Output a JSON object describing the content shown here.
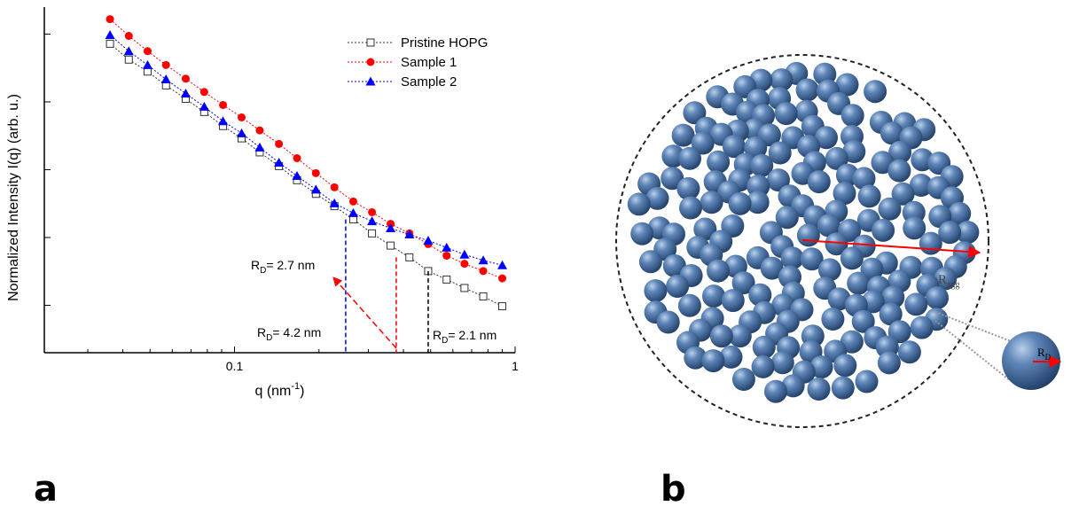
{
  "chart_data": {
    "type": "line",
    "log_x": true,
    "log_y": true,
    "x_label": {
      "text": "q (nm",
      "sup": "-1",
      "end": ")"
    },
    "y_label": "Normalized Intensity I(q) (arb. u.)",
    "x": [
      0.036,
      0.042,
      0.049,
      0.057,
      0.067,
      0.078,
      0.091,
      0.106,
      0.123,
      0.144,
      0.167,
      0.195,
      0.227,
      0.265,
      0.309,
      0.36,
      0.42,
      0.49,
      0.57,
      0.66,
      0.77,
      0.9
    ],
    "xlim": [
      0.021,
      1
    ],
    "xticks": [
      0.1,
      1
    ],
    "ylim": [
      0.2,
      25000
    ],
    "yticks": [
      1,
      10,
      100,
      1000,
      10000
    ],
    "legend": "upper right",
    "series": [
      {
        "name": "Pristine HOPG",
        "color": "#333333",
        "marker": "square",
        "values": [
          7200,
          4200,
          2800,
          1750,
          1110,
          710,
          440,
          290,
          180,
          113,
          70,
          44,
          29,
          18.5,
          11.5,
          7.6,
          5.1,
          3.2,
          2.4,
          1.8,
          1.35,
          0.97
        ]
      },
      {
        "name": "Sample 1",
        "color": "#ff0000",
        "marker": "circle",
        "values": [
          16600,
          9400,
          5600,
          3500,
          2200,
          1400,
          900,
          590,
          380,
          240,
          148,
          89,
          55,
          34,
          23.6,
          15.9,
          11.5,
          8,
          5.4,
          4.1,
          3.2,
          2.5
        ]
      },
      {
        "name": "Sample 2",
        "color": "#0000ff",
        "marker": "triangle",
        "values": [
          9700,
          5600,
          3500,
          2150,
          1330,
          850,
          520,
          345,
          213,
          127,
          81,
          51,
          32,
          23,
          17.4,
          13.7,
          11.1,
          9,
          7.1,
          5.6,
          4.6,
          3.9
        ]
      }
    ],
    "annotations": [
      {
        "main": "R",
        "sub": "D",
        "rest": "= 2.7 nm",
        "x": 0.249,
        "color": "#0000ff"
      },
      {
        "main": "R",
        "sub": "D",
        "rest": "= 4.2 nm",
        "x": 0.377,
        "color": "#ff0000"
      },
      {
        "main": "R",
        "sub": "D",
        "rest": "= 2.1 nm",
        "x": 0.49,
        "color": "#000000"
      }
    ]
  },
  "panels": [
    "a",
    "b"
  ],
  "diagram": {
    "aggregate_label": {
      "main": "R",
      "sub": "agg"
    },
    "particle_label": {
      "main": "R",
      "sub": "D"
    }
  }
}
